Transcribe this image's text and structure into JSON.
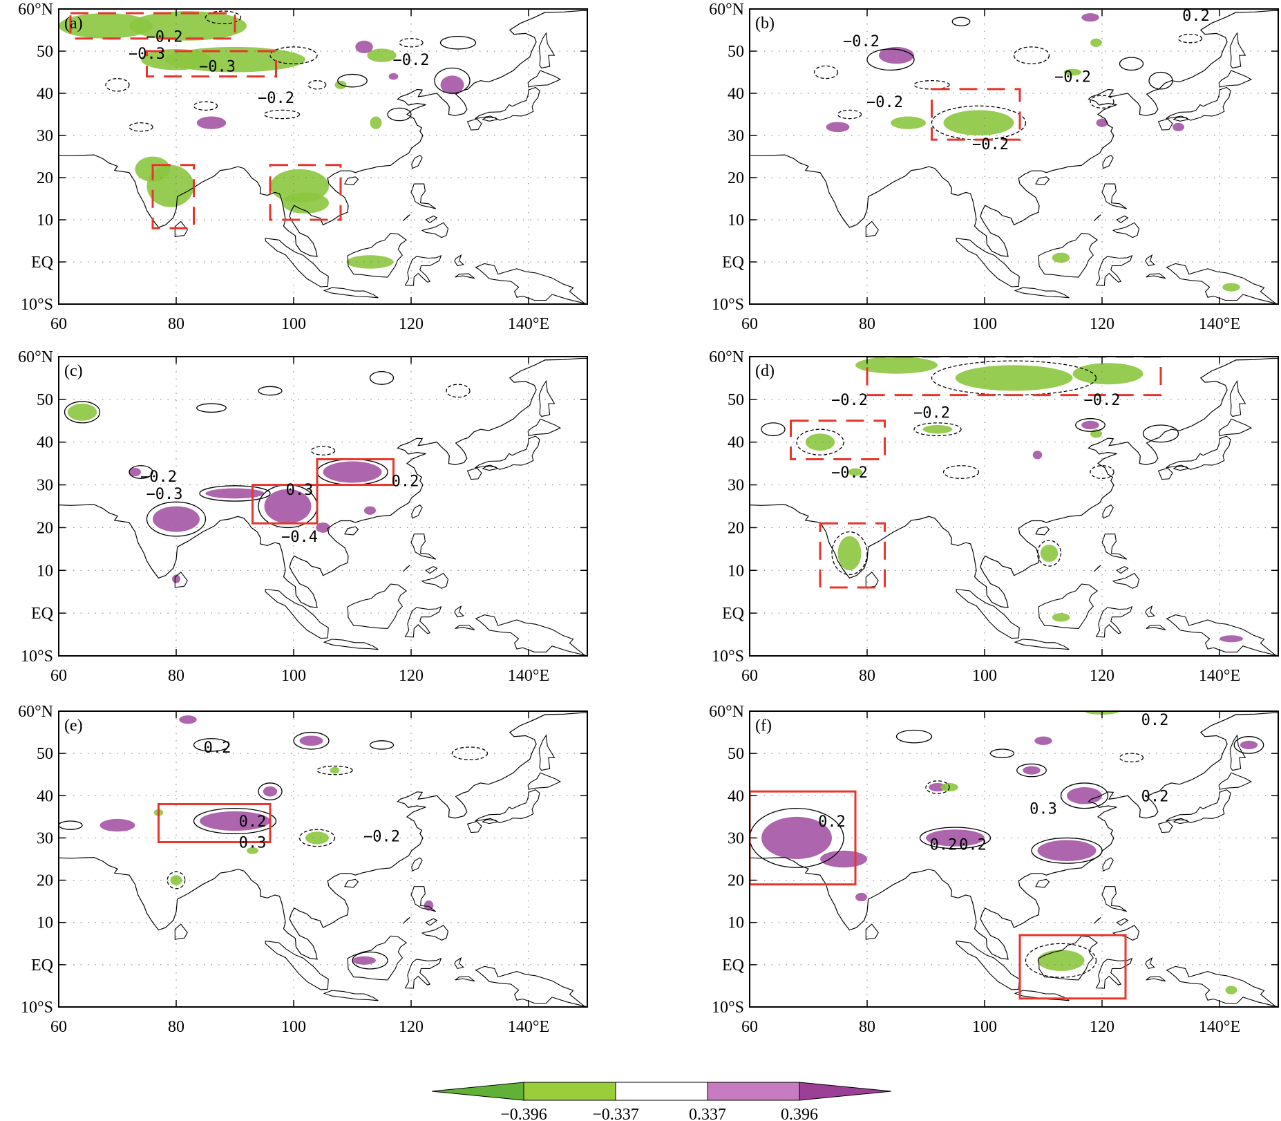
{
  "figure": {
    "panels": [
      {
        "id": "a",
        "label": "(a)",
        "contour_labels": [
          "−0.2",
          "−0.3",
          "−0.3",
          "−0.2",
          "−0.2"
        ],
        "regions": [
          {
            "style": "dashed",
            "lon": [
              62,
              90
            ],
            "lat": [
              53,
              59
            ]
          },
          {
            "style": "dashed",
            "lon": [
              75,
              97
            ],
            "lat": [
              44,
              50
            ]
          },
          {
            "style": "dashed",
            "lon": [
              76,
              83
            ],
            "lat": [
              8,
              23
            ]
          },
          {
            "style": "dashed",
            "lon": [
              96,
              108
            ],
            "lat": [
              10,
              23
            ]
          }
        ]
      },
      {
        "id": "b",
        "label": "(b)",
        "contour_labels": [
          "−0.2",
          "0.2",
          "−0.2",
          "−0.2",
          "−0.2"
        ],
        "regions": [
          {
            "style": "dashed",
            "lon": [
              91,
              106
            ],
            "lat": [
              29,
              41
            ]
          }
        ]
      },
      {
        "id": "c",
        "label": "(c)",
        "contour_labels": [
          "−0.2",
          "−0.3",
          "0.3",
          "−0.4",
          "0.2"
        ],
        "regions": [
          {
            "style": "solid",
            "lon": [
              93,
              104
            ],
            "lat": [
              21,
              30
            ]
          },
          {
            "style": "solid",
            "lon": [
              104,
              117
            ],
            "lat": [
              30,
              36
            ]
          }
        ]
      },
      {
        "id": "d",
        "label": "(d)",
        "contour_labels": [
          "−0.2",
          "−0.2",
          "−0.2",
          "−0.2"
        ],
        "regions": [
          {
            "style": "dashed",
            "lon": [
              80,
              130
            ],
            "lat": [
              51,
              60
            ]
          },
          {
            "style": "dashed",
            "lon": [
              67,
              83
            ],
            "lat": [
              36,
              45
            ]
          },
          {
            "style": "dashed",
            "lon": [
              72,
              83
            ],
            "lat": [
              6,
              21
            ]
          }
        ]
      },
      {
        "id": "e",
        "label": "(e)",
        "contour_labels": [
          "0.2",
          "0.2",
          "0.3",
          "−0.2"
        ],
        "regions": [
          {
            "style": "solid",
            "lon": [
              77,
              96
            ],
            "lat": [
              29,
              38
            ]
          }
        ]
      },
      {
        "id": "f",
        "label": "(f)",
        "contour_labels": [
          "0.2",
          "0.2",
          "0.2",
          "0.2",
          "0.3",
          "0.2"
        ],
        "regions": [
          {
            "style": "solid",
            "lon": [
              60,
              78
            ],
            "lat": [
              19,
              41
            ]
          },
          {
            "style": "solid",
            "lon": [
              106,
              124
            ],
            "lat": [
              -8,
              7
            ]
          }
        ]
      }
    ],
    "axes": {
      "lon_range": [
        60,
        150
      ],
      "lat_range": [
        -10,
        60
      ],
      "x_ticks": [
        "60",
        "80",
        "100",
        "120",
        "140°E"
      ],
      "y_ticks": [
        "60°N",
        "50",
        "40",
        "30",
        "20",
        "10",
        "EQ",
        "10°S"
      ]
    },
    "colorbar": {
      "tick_labels": [
        "−0.396",
        "−0.337",
        "0.337",
        "0.396"
      ],
      "colors": [
        "#61b136",
        "#9acd3a",
        "#ffffff",
        "#c77bc0",
        "#9b3f97"
      ]
    },
    "colors": {
      "negative_shade": "#8cc63f",
      "positive_shade": "#a455a4",
      "region_box": "#e8342a",
      "land": "#ffffff"
    }
  }
}
